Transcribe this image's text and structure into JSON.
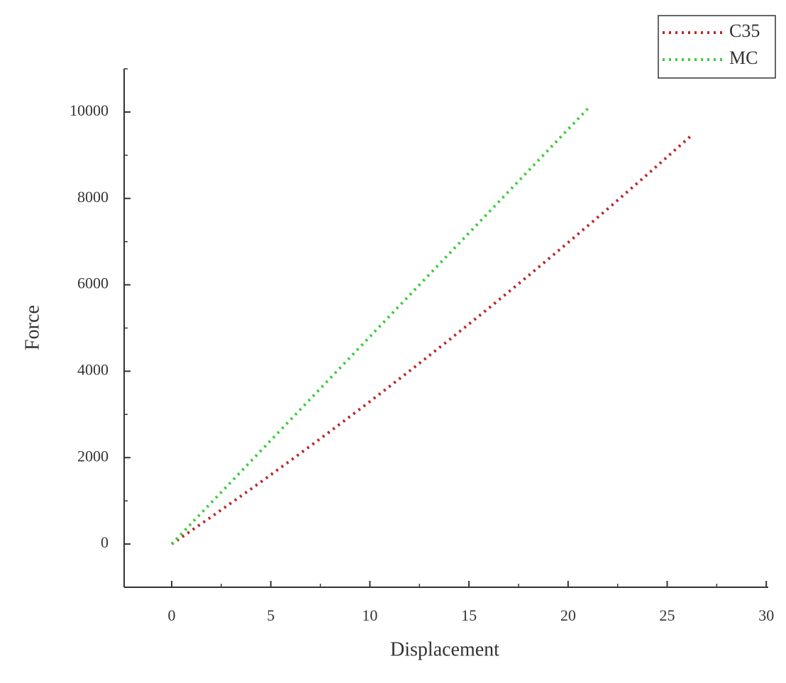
{
  "chart_data": {
    "type": "line",
    "x_label": "Displacement",
    "y_label": "Force",
    "xlim": [
      -2.4,
      30.1
    ],
    "xticks": [
      0,
      5,
      10,
      15,
      20,
      25,
      30
    ],
    "ylim": [
      -1000,
      11000
    ],
    "yticks": [
      0,
      2000,
      4000,
      6000,
      8000,
      10000
    ],
    "legend": "top-right",
    "series": [
      {
        "name": "C35",
        "color": "#b8292a",
        "x": [
          0,
          2,
          4,
          6,
          8,
          10,
          12,
          14,
          16,
          18,
          20,
          22,
          24,
          26,
          26.2
        ],
        "values": [
          0,
          630,
          1274,
          1934,
          2609,
          3299,
          4005,
          4725,
          5461,
          6212,
          6978,
          7759,
          8555,
          9366,
          9448
        ]
      },
      {
        "name": "MC",
        "color": "#3ccc3c",
        "x": [
          0,
          2,
          4,
          6,
          8,
          10,
          12,
          14,
          16,
          18,
          20,
          21
        ],
        "values": [
          0,
          960,
          1920,
          2880,
          3840,
          4800,
          5760,
          6720,
          7680,
          8640,
          9600,
          10080
        ]
      }
    ]
  }
}
